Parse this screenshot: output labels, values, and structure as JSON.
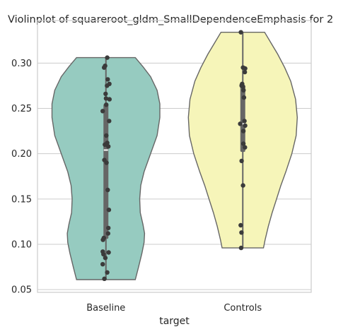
{
  "chart_data": {
    "type": "violin",
    "title": "Violinplot of squareroot_gldm_SmallDependenceEmphasis for 2",
    "xlabel": "target",
    "ylabel": "",
    "categories": [
      "Baseline",
      "Controls"
    ],
    "ylim": [
      0.047,
      0.347
    ],
    "yticks": [
      0.05,
      0.1,
      0.15,
      0.2,
      0.25,
      0.3
    ],
    "ytick_labels": [
      "0.05",
      "0.10",
      "0.15",
      "0.20",
      "0.25",
      "0.30"
    ],
    "grid": true,
    "legend": "none",
    "colors": {
      "Baseline": "#96cbc0",
      "Controls": "#f6f5b9",
      "inner": "#666666",
      "median": "#ffffff",
      "points": "#3b3b3b"
    },
    "violins": [
      {
        "category": "Baseline",
        "min": 0.061,
        "max": 0.306,
        "q1": 0.106,
        "median": 0.204,
        "q3": 0.255,
        "density": [
          [
            0.061,
            0.54
          ],
          [
            0.075,
            0.6
          ],
          [
            0.09,
            0.66
          ],
          [
            0.102,
            0.7
          ],
          [
            0.112,
            0.71
          ],
          [
            0.122,
            0.68
          ],
          [
            0.135,
            0.63
          ],
          [
            0.15,
            0.62
          ],
          [
            0.165,
            0.64
          ],
          [
            0.18,
            0.7
          ],
          [
            0.2,
            0.82
          ],
          [
            0.22,
            0.94
          ],
          [
            0.24,
            0.99
          ],
          [
            0.255,
            0.99
          ],
          [
            0.27,
            0.94
          ],
          [
            0.285,
            0.82
          ],
          [
            0.296,
            0.68
          ],
          [
            0.306,
            0.54
          ]
        ],
        "points": [
          [
            0.306,
            0.09
          ],
          [
            0.297,
            -0.06
          ],
          [
            0.295,
            -0.13
          ],
          [
            0.282,
            0.13
          ],
          [
            0.277,
            0.24
          ],
          [
            0.275,
            0.08
          ],
          [
            0.266,
            -0.02
          ],
          [
            0.261,
            0.01
          ],
          [
            0.26,
            0.25
          ],
          [
            0.254,
            0.02
          ],
          [
            0.247,
            -0.23
          ],
          [
            0.236,
            0.23
          ],
          [
            0.22,
            0.03
          ],
          [
            0.212,
            0.09
          ],
          [
            0.21,
            -0.07
          ],
          [
            0.208,
            0.17
          ],
          [
            0.193,
            -0.11
          ],
          [
            0.19,
            0.04
          ],
          [
            0.16,
            0.13
          ],
          [
            0.138,
            0.21
          ],
          [
            0.118,
            0.17
          ],
          [
            0.112,
            0.15
          ],
          [
            0.107,
            -0.15
          ],
          [
            0.105,
            -0.21
          ],
          [
            0.092,
            -0.22
          ],
          [
            0.091,
            0.19
          ],
          [
            0.089,
            -0.17
          ],
          [
            0.085,
            -0.04
          ],
          [
            0.078,
            -0.23
          ],
          [
            0.069,
            0.09
          ],
          [
            0.062,
            -0.11
          ]
        ]
      },
      {
        "category": "Controls",
        "min": 0.096,
        "max": 0.334,
        "q1": 0.202,
        "median": 0.233,
        "q3": 0.275,
        "density": [
          [
            0.096,
            0.38
          ],
          [
            0.105,
            0.41
          ],
          [
            0.12,
            0.47
          ],
          [
            0.135,
            0.54
          ],
          [
            0.15,
            0.62
          ],
          [
            0.165,
            0.7
          ],
          [
            0.18,
            0.79
          ],
          [
            0.2,
            0.9
          ],
          [
            0.22,
            0.98
          ],
          [
            0.24,
            1.0
          ],
          [
            0.26,
            0.97
          ],
          [
            0.28,
            0.88
          ],
          [
            0.295,
            0.77
          ],
          [
            0.31,
            0.64
          ],
          [
            0.322,
            0.52
          ],
          [
            0.334,
            0.4
          ]
        ],
        "points": [
          [
            0.334,
            -0.13
          ],
          [
            0.295,
            0.02
          ],
          [
            0.294,
            0.17
          ],
          [
            0.29,
            0.14
          ],
          [
            0.277,
            -0.04
          ],
          [
            0.276,
            -0.07
          ],
          [
            0.275,
            -0.08
          ],
          [
            0.274,
            0.02
          ],
          [
            0.27,
            0.05
          ],
          [
            0.262,
            0.08
          ],
          [
            0.236,
            0.12
          ],
          [
            0.233,
            -0.18
          ],
          [
            0.231,
            0.17
          ],
          [
            0.225,
            0.04
          ],
          [
            0.211,
            0.04
          ],
          [
            0.207,
            0.15
          ],
          [
            0.192,
            -0.08
          ],
          [
            0.165,
            0.02
          ],
          [
            0.121,
            -0.15
          ],
          [
            0.113,
            -0.09
          ],
          [
            0.096,
            -0.12
          ]
        ]
      }
    ]
  }
}
